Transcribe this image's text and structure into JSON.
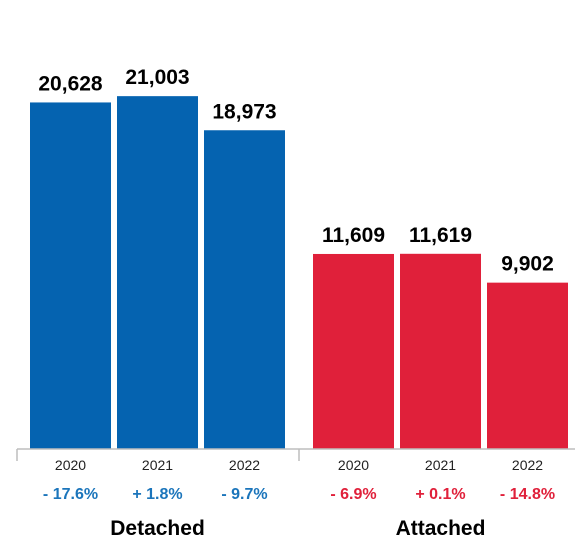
{
  "chart_data": {
    "type": "bar",
    "title": "",
    "xlabel": "",
    "ylabel": "",
    "ylim": [
      0,
      25000
    ],
    "grid": false,
    "legend": "none",
    "groups": [
      {
        "name": "Detached",
        "color": "#0563b0",
        "categories": [
          "2020",
          "2021",
          "2022"
        ],
        "values": [
          20628,
          21003,
          18973
        ],
        "value_labels": [
          "20,628",
          "21,003",
          "18,973"
        ],
        "changes": [
          "- 17.6%",
          "+ 1.8%",
          "- 9.7%"
        ],
        "change_color": "#1b75bb"
      },
      {
        "name": "Attached",
        "color": "#e0203a",
        "categories": [
          "2020",
          "2021",
          "2022"
        ],
        "values": [
          11609,
          11619,
          9902
        ],
        "value_labels": [
          "11,609",
          "11,619",
          "9,902"
        ],
        "changes": [
          "- 6.9%",
          "+ 0.1%",
          "- 14.8%"
        ],
        "change_color": "#e0203a"
      }
    ]
  }
}
